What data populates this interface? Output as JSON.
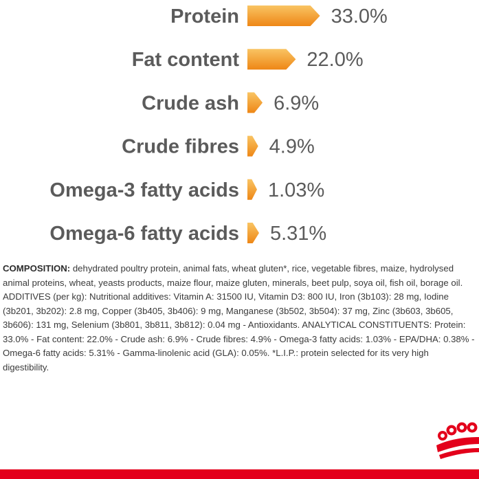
{
  "chart_data": {
    "type": "bar",
    "categories": [
      "Protein",
      "Fat content",
      "Crude ash",
      "Crude fibres",
      "Omega-3 fatty acids",
      "Omega-6 fatty acids"
    ],
    "values": [
      33.0,
      22.0,
      6.9,
      4.9,
      1.03,
      5.31
    ],
    "value_labels": [
      "33.0%",
      "22.0%",
      "6.9%",
      "4.9%",
      "1.03%",
      "5.31%"
    ],
    "orientation": "horizontal",
    "title": "",
    "xlabel": "",
    "ylabel": "",
    "grid": false,
    "colors": {
      "bar_start": "#f7b349",
      "bar_end": "#ef8a1a",
      "text": "#5b5b5b"
    }
  },
  "composition": {
    "heading": "COMPOSITION:",
    "text": " dehydrated poultry protein, animal fats, wheat gluten*, rice, vegetable fibres, maize, hydrolysed animal proteins, wheat, yeasts products, maize flour, maize gluten, minerals, beet pulp, soya oil, fish oil, borage oil. ADDITIVES (per kg): Nutritional additives: Vitamin A: 31500 IU, Vitamin D3: 800 IU, Iron (3b103): 28 mg, Iodine (3b201, 3b202): 2.8 mg, Copper (3b405, 3b406): 9 mg, Manganese (3b502, 3b504): 37 mg, Zinc (3b603, 3b605, 3b606): 131 mg, Selenium (3b801, 3b811, 3b812): 0.04 mg - Antioxidants. ANALYTICAL CONSTITUENTS: Protein: 33.0% - Fat content: 22.0% - Crude ash: 6.9% - Crude fibres: 4.9% - Omega-3 fatty acids: 1.03% - EPA/DHA: 0.38% - Omega-6 fatty acids: 5.31% - Gamma-linolenic acid (GLA): 0.05%. *L.I.P.: protein selected for its very high digestibility."
  },
  "brand": {
    "logo_icon": "crown-icon",
    "accent_color": "#e3001b"
  }
}
